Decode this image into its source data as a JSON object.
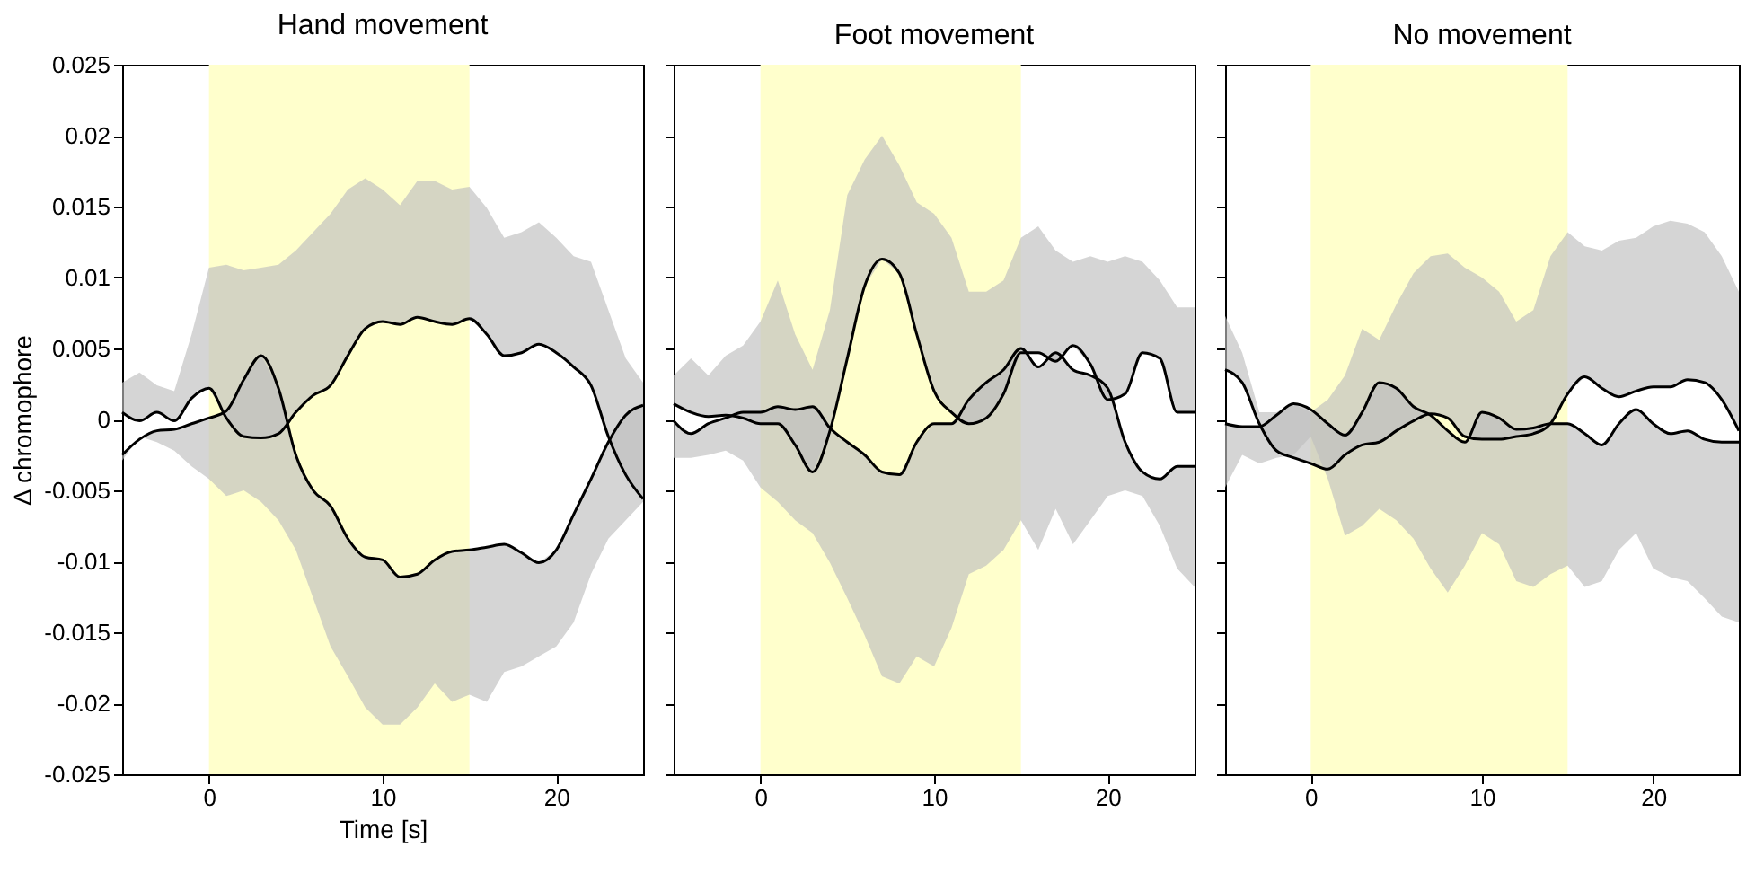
{
  "chart_data": [
    {
      "type": "line",
      "title": "Hand movement",
      "xlabel": "Time [s]",
      "ylabel": "Δ chromophore",
      "xlim": [
        -5,
        25
      ],
      "xticks": [
        0,
        10,
        20
      ],
      "ylim": [
        -0.025,
        0.025
      ],
      "yticks": [
        -0.025,
        -0.02,
        -0.015,
        -0.01,
        -0.005,
        0,
        0.005,
        0.01,
        0.015,
        0.02,
        0.025
      ],
      "grid": false,
      "bands": [
        {
          "axis": "x",
          "from": 0,
          "to": 15,
          "color": "#ffffcc"
        }
      ],
      "x": [
        -5,
        -4,
        -3,
        -2,
        -1,
        0,
        1,
        2,
        3,
        4,
        5,
        6,
        7,
        8,
        9,
        10,
        11,
        12,
        13,
        14,
        15,
        16,
        17,
        18,
        19,
        20,
        21,
        22,
        23,
        24,
        25
      ],
      "series": [
        {
          "color": "#000000",
          "values": [
            0.0005,
            -0.0001,
            0.0005,
            -0.0001,
            0.0015,
            0.0022,
            0.0001,
            -0.0012,
            -0.0013,
            -0.001,
            0.0005,
            0.0017,
            0.0024,
            0.0045,
            0.0064,
            0.0069,
            0.0067,
            0.0072,
            0.0069,
            0.0067,
            0.0071,
            0.006,
            0.0045,
            0.0047,
            0.0053,
            0.0047,
            0.0037,
            0.0024,
            -0.0012,
            -0.0039,
            -0.0056
          ],
          "lower": [
            0.0005,
            -0.0001,
            0.0005,
            -0.0001,
            0.0015,
            0.0022,
            0.0001,
            -0.0012,
            -0.0013,
            -0.001,
            0.0005,
            0.0017,
            0.0024,
            0.0045,
            0.0064,
            0.0069,
            0.0067,
            0.0072,
            0.0069,
            0.0067,
            0.0071,
            0.006,
            0.0045,
            0.0047,
            0.0053,
            0.0047,
            0.0037,
            0.0024,
            -0.0012,
            -0.0039,
            -0.0056
          ],
          "upper": [
            0.0026,
            0.0033,
            0.0024,
            0.002,
            0.006,
            0.0107,
            0.0109,
            0.0105,
            0.0107,
            0.0109,
            0.0119,
            0.0132,
            0.0145,
            0.0162,
            0.017,
            0.0162,
            0.0151,
            0.0168,
            0.0168,
            0.0162,
            0.0164,
            0.0149,
            0.0128,
            0.0132,
            0.0139,
            0.0128,
            0.0115,
            0.0111,
            0.0077,
            0.0043,
            0.0026
          ]
        },
        {
          "color": "#000000",
          "values": [
            -0.0025,
            -0.0014,
            -0.0008,
            -0.0007,
            -0.0003,
            0.0001,
            0.0006,
            0.0028,
            0.0045,
            0.0022,
            -0.0025,
            -0.005,
            -0.0061,
            -0.0084,
            -0.0097,
            -0.0099,
            -0.0111,
            -0.0109,
            -0.0099,
            -0.0093,
            -0.0092,
            -0.009,
            -0.0088,
            -0.0094,
            -0.0101,
            -0.0092,
            -0.0067,
            -0.0042,
            -0.0016,
            0.0003,
            0.001
          ],
          "lower": [
            -0.0029,
            -0.0012,
            -0.0016,
            -0.0022,
            -0.0033,
            -0.0042,
            -0.0054,
            -0.005,
            -0.0058,
            -0.0071,
            -0.0092,
            -0.0126,
            -0.016,
            -0.0181,
            -0.0203,
            -0.0215,
            -0.0215,
            -0.0203,
            -0.0186,
            -0.0199,
            -0.0194,
            -0.0199,
            -0.0178,
            -0.0174,
            -0.0167,
            -0.016,
            -0.0143,
            -0.0109,
            -0.0084,
            -0.0071,
            -0.0058
          ],
          "upper": [
            -0.0025,
            -0.0014,
            -0.0008,
            -0.0007,
            -0.0003,
            0.0001,
            0.0006,
            0.0028,
            0.0045,
            0.0022,
            -0.0025,
            -0.005,
            -0.0061,
            -0.0084,
            -0.0097,
            -0.0099,
            -0.0111,
            -0.0109,
            -0.0099,
            -0.0093,
            -0.0092,
            -0.009,
            -0.0088,
            -0.0094,
            -0.0101,
            -0.0092,
            -0.0067,
            -0.0042,
            -0.0016,
            0.0003,
            0.001
          ]
        }
      ]
    },
    {
      "type": "line",
      "title": "Foot movement",
      "xlim": [
        -5,
        25
      ],
      "xticks": [
        0,
        10,
        20
      ],
      "ylim": [
        -0.025,
        0.025
      ],
      "yticks": [
        -0.025,
        -0.02,
        -0.015,
        -0.01,
        -0.005,
        0,
        0.005,
        0.01,
        0.015,
        0.02,
        0.025
      ],
      "tick_labels": "x",
      "grid": false,
      "bands": [
        {
          "axis": "x",
          "from": 0,
          "to": 15,
          "color": "#ffffcc"
        }
      ],
      "x": [
        -5,
        -4,
        -3,
        -2,
        -1,
        0,
        1,
        2,
        3,
        4,
        5,
        6,
        7,
        8,
        9,
        10,
        11,
        12,
        13,
        14,
        15,
        16,
        17,
        18,
        19,
        20,
        21,
        22,
        23,
        24,
        25
      ],
      "series": [
        {
          "color": "#000000",
          "values": [
            0.0011,
            0.0005,
            0.0002,
            0.0003,
            0.0001,
            -0.0003,
            -0.0003,
            -0.0018,
            -0.0037,
            -0.0008,
            0.0043,
            0.0094,
            0.0113,
            0.0103,
            0.006,
            0.002,
            0.0005,
            -0.0003,
            0.0001,
            0.0018,
            0.0047,
            0.0047,
            0.0041,
            0.0052,
            0.0039,
            0.0014,
            0.0018,
            0.0047,
            0.0043,
            0.0005,
            0.0005
          ],
          "lower": [
            0.0011,
            0.0005,
            0.0002,
            0.0003,
            0.0001,
            -0.0003,
            -0.0003,
            -0.0018,
            -0.0037,
            -0.0008,
            0.0043,
            0.0094,
            0.0113,
            0.0103,
            0.006,
            0.002,
            0.0005,
            -0.0003,
            0.0001,
            0.0018,
            0.0047,
            0.0047,
            0.0041,
            0.0052,
            0.0039,
            0.0014,
            0.0018,
            0.0047,
            0.0043,
            0.0005,
            0.0005
          ],
          "upper": [
            0.0031,
            0.0043,
            0.0031,
            0.0045,
            0.0052,
            0.0069,
            0.0098,
            0.006,
            0.0035,
            0.0077,
            0.0158,
            0.0183,
            0.02,
            0.0179,
            0.0153,
            0.0145,
            0.0128,
            0.009,
            0.009,
            0.0098,
            0.0128,
            0.0136,
            0.0119,
            0.0111,
            0.0115,
            0.0111,
            0.0115,
            0.0111,
            0.0098,
            0.0079,
            0.0079
          ]
        },
        {
          "color": "#000000",
          "values": [
            -0.0001,
            -0.001,
            -0.0003,
            0.0001,
            0.0005,
            0.0005,
            0.0009,
            0.0007,
            0.0009,
            -0.0006,
            -0.0016,
            -0.0025,
            -0.0037,
            -0.0039,
            -0.0016,
            -0.0003,
            -0.0003,
            0.0014,
            0.0026,
            0.0035,
            0.005,
            0.0037,
            0.0047,
            0.0035,
            0.0031,
            0.0022,
            -0.0016,
            -0.0037,
            -0.0042,
            -0.0033,
            -0.0033
          ],
          "lower": [
            -0.0027,
            -0.0027,
            -0.0025,
            -0.0022,
            -0.0029,
            -0.0048,
            -0.0058,
            -0.0071,
            -0.008,
            -0.0101,
            -0.0126,
            -0.0152,
            -0.0181,
            -0.0186,
            -0.0167,
            -0.0174,
            -0.0147,
            -0.0109,
            -0.0103,
            -0.0092,
            -0.0071,
            -0.0092,
            -0.0063,
            -0.0088,
            -0.0071,
            -0.0054,
            -0.005,
            -0.0054,
            -0.0075,
            -0.0105,
            -0.0118
          ],
          "upper": [
            -0.0001,
            -0.001,
            -0.0003,
            0.0001,
            0.0005,
            0.0005,
            0.0009,
            0.0007,
            0.0009,
            -0.0006,
            -0.0016,
            -0.0025,
            -0.0037,
            -0.0039,
            -0.0016,
            -0.0003,
            -0.0003,
            0.0014,
            0.0026,
            0.0035,
            0.005,
            0.0037,
            0.0047,
            0.0035,
            0.0031,
            0.0022,
            -0.0016,
            -0.0037,
            -0.0042,
            -0.0033,
            -0.0033
          ]
        }
      ]
    },
    {
      "type": "line",
      "title": "No movement",
      "xlim": [
        -5,
        25
      ],
      "xticks": [
        0,
        10,
        20
      ],
      "ylim": [
        -0.025,
        0.025
      ],
      "yticks": [
        -0.025,
        -0.02,
        -0.015,
        -0.01,
        -0.005,
        0,
        0.005,
        0.01,
        0.015,
        0.02,
        0.025
      ],
      "tick_labels": "x",
      "grid": false,
      "bands": [
        {
          "axis": "x",
          "from": 0,
          "to": 15,
          "color": "#ffffcc"
        }
      ],
      "x": [
        -5,
        -4,
        -3,
        -2,
        -1,
        0,
        1,
        2,
        3,
        4,
        5,
        6,
        7,
        8,
        9,
        10,
        11,
        12,
        13,
        14,
        15,
        16,
        17,
        18,
        19,
        20,
        21,
        22,
        23,
        24,
        25
      ],
      "series": [
        {
          "color": "#000000",
          "values": [
            0.0035,
            0.0026,
            -0.0003,
            -0.0022,
            -0.0027,
            -0.0031,
            -0.0035,
            -0.0025,
            -0.0018,
            -0.0016,
            -0.0008,
            -0.0001,
            0.0004,
            0.0001,
            -0.0012,
            -0.0014,
            -0.0014,
            -0.0012,
            -0.001,
            -0.0003,
            0.0018,
            0.003,
            0.0022,
            0.0016,
            0.002,
            0.0023,
            0.0023,
            0.0028,
            0.0026,
            0.0014,
            -0.0008
          ],
          "lower": [
            0.0035,
            0.0026,
            -0.0003,
            -0.0022,
            -0.0027,
            -0.0031,
            -0.0035,
            -0.0025,
            -0.0018,
            -0.0016,
            -0.0008,
            -0.0001,
            0.0004,
            0.0001,
            -0.0012,
            -0.0014,
            -0.0014,
            -0.0012,
            -0.001,
            -0.0003,
            0.0018,
            0.003,
            0.0022,
            0.0016,
            0.002,
            0.0023,
            0.0023,
            0.0028,
            0.0026,
            0.0014,
            -0.0008
          ],
          "upper": [
            0.0073,
            0.0047,
            0.0005,
            0.0005,
            0.0011,
            0.0005,
            0.0014,
            0.0031,
            0.0064,
            0.0056,
            0.0081,
            0.0103,
            0.0115,
            0.0117,
            0.0107,
            0.01,
            0.009,
            0.0069,
            0.0077,
            0.0115,
            0.0132,
            0.0122,
            0.0119,
            0.0126,
            0.0128,
            0.0136,
            0.014,
            0.0138,
            0.0132,
            0.0115,
            0.009
          ]
        },
        {
          "color": "#000000",
          "values": [
            -0.0003,
            -0.0005,
            -0.0005,
            0.0003,
            0.0011,
            0.0007,
            -0.0003,
            -0.0011,
            0.0005,
            0.0026,
            0.0022,
            0.0009,
            0.0003,
            -0.0008,
            -0.0016,
            0.0005,
            0.0001,
            -0.0007,
            -0.0006,
            -0.0003,
            -0.0003,
            -0.001,
            -0.0018,
            -0.0003,
            0.0007,
            -0.0003,
            -0.001,
            -0.0008,
            -0.0014,
            -0.0016,
            -0.0016
          ],
          "lower": [
            -0.0048,
            -0.0025,
            -0.0031,
            -0.0027,
            -0.0025,
            -0.0012,
            -0.0042,
            -0.0082,
            -0.0075,
            -0.0063,
            -0.0071,
            -0.0084,
            -0.0105,
            -0.0122,
            -0.0103,
            -0.008,
            -0.0088,
            -0.0114,
            -0.0118,
            -0.0109,
            -0.0103,
            -0.0118,
            -0.0114,
            -0.0092,
            -0.008,
            -0.0105,
            -0.0111,
            -0.0114,
            -0.0126,
            -0.0139,
            -0.0143
          ],
          "upper": [
            -0.0003,
            -0.0005,
            -0.0005,
            0.0003,
            0.0011,
            0.0007,
            -0.0003,
            -0.0011,
            0.0005,
            0.0026,
            0.0022,
            0.0009,
            0.0003,
            -0.0008,
            -0.0016,
            0.0005,
            0.0001,
            -0.0007,
            -0.0006,
            -0.0003,
            -0.0003,
            -0.001,
            -0.0018,
            -0.0003,
            0.0007,
            -0.0003,
            -0.001,
            -0.0008,
            -0.0014,
            -0.0016,
            -0.0016
          ]
        }
      ]
    }
  ]
}
